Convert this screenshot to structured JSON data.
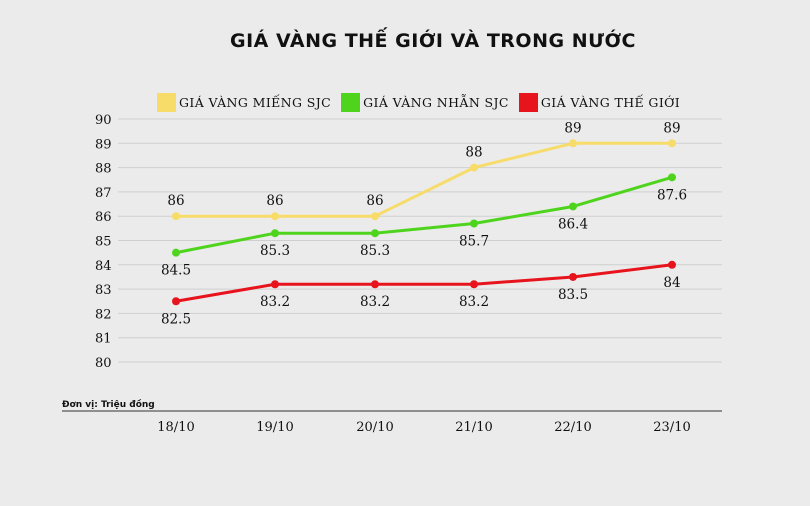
{
  "chart_data": {
    "type": "line",
    "title": "GIÁ VÀNG THẾ GIỚI VÀ TRONG NƯỚC",
    "unit_note": "Đơn vị: Triệu đồng",
    "categories": [
      "18/10",
      "19/10",
      "20/10",
      "21/10",
      "22/10",
      "23/10"
    ],
    "yticks": [
      80,
      81,
      82,
      83,
      84,
      85,
      86,
      87,
      88,
      89,
      90
    ],
    "ylim": [
      80,
      90
    ],
    "grid": true,
    "legend_position": "top",
    "series": [
      {
        "name": "GIÁ VÀNG MIẾNG SJC",
        "color": "#f7dc6a",
        "values": [
          86,
          86,
          86,
          88,
          89,
          89
        ],
        "labels": [
          "86",
          "86",
          "86",
          "88",
          "89",
          "89"
        ],
        "label_side": "above"
      },
      {
        "name": "GIÁ VÀNG NHẪN SJC",
        "color": "#4fd41e",
        "values": [
          84.5,
          85.3,
          85.3,
          85.7,
          86.4,
          87.6
        ],
        "labels": [
          "84.5",
          "85.3",
          "85.3",
          "85.7",
          "86.4",
          "87.6"
        ],
        "label_side": "below"
      },
      {
        "name": "GIÁ VÀNG THẾ GIỚI",
        "color": "#e8141d",
        "values": [
          82.5,
          83.2,
          83.2,
          83.2,
          83.5,
          84
        ],
        "labels": [
          "82.5",
          "83.2",
          "83.2",
          "83.2",
          "83.5",
          "84"
        ],
        "label_side": "below"
      }
    ]
  }
}
